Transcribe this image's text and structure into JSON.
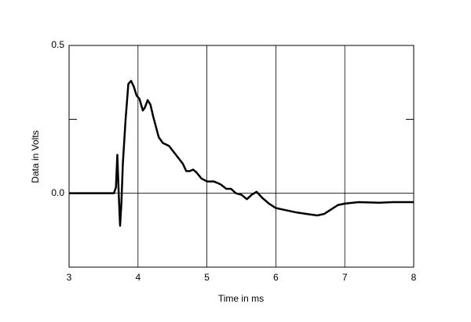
{
  "chart_data": {
    "type": "line",
    "xlabel": "Time in ms",
    "ylabel": "Data in Volts",
    "xlim": [
      3,
      8
    ],
    "xticks": [
      3,
      4,
      5,
      6,
      7,
      8
    ],
    "ylim": [
      -0.25,
      0.5
    ],
    "yticks": [
      0.5,
      {
        "value": 0,
        "label": "0.0"
      }
    ],
    "yticks_unlabeled": [
      0.25
    ],
    "grid": true,
    "series": [
      {
        "color": "#000000",
        "x": [
          3,
          3.65,
          3.68,
          3.7,
          3.72,
          3.74,
          3.76,
          3.78,
          3.82,
          3.86,
          3.9,
          3.94,
          3.98,
          4.02,
          4.07,
          4.1,
          4.14,
          4.18,
          4.22,
          4.3,
          4.36,
          4.45,
          4.55,
          4.65,
          4.7,
          4.75,
          4.8,
          4.85,
          4.92,
          5.0,
          5.1,
          5.2,
          5.28,
          5.35,
          5.42,
          5.5,
          5.58,
          5.65,
          5.72,
          5.8,
          5.9,
          6.0,
          6.1,
          6.2,
          6.3,
          6.45,
          6.6,
          6.7,
          6.8,
          6.9,
          7.0,
          7.2,
          7.5,
          7.7,
          8.0
        ],
        "values": [
          0,
          0,
          0.02,
          0.13,
          0.0,
          -0.11,
          -0.03,
          0.1,
          0.25,
          0.37,
          0.38,
          0.36,
          0.33,
          0.32,
          0.28,
          0.29,
          0.315,
          0.3,
          0.26,
          0.19,
          0.17,
          0.16,
          0.13,
          0.1,
          0.075,
          0.075,
          0.08,
          0.07,
          0.05,
          0.04,
          0.04,
          0.03,
          0.015,
          0.015,
          0.0,
          -0.005,
          -0.02,
          -0.005,
          0.005,
          -0.015,
          -0.035,
          -0.05,
          -0.055,
          -0.06,
          -0.065,
          -0.07,
          -0.075,
          -0.07,
          -0.055,
          -0.04,
          -0.035,
          -0.03,
          -0.032,
          -0.03,
          -0.03
        ]
      }
    ]
  }
}
